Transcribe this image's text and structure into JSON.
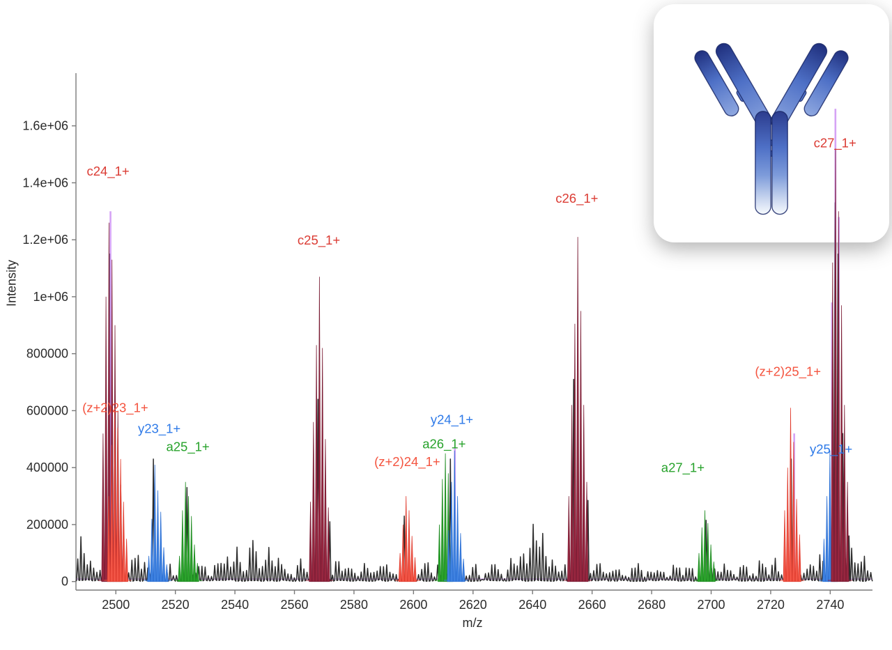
{
  "figure": {
    "background": "#ffffff",
    "axis_color": "#7a7a7a",
    "tick_label_color": "#2b2b2b",
    "noise_color": "#2c2c2c",
    "theoretical_color_rgba": "rgba(203,140,243,0.8)",
    "theoretical_baseline_rgba": "rgba(213,158,247,0.9)"
  },
  "overlay_card": {
    "name": "antibody-structure",
    "icon": "antibody-igg-icon",
    "fill_top": "#1f2f7d",
    "fill_mid": "#4e70c6",
    "fill_light": "#8fa8e0",
    "fill_bottom": "#f5f8fd",
    "outline": "#1b2968"
  },
  "chart_data": {
    "type": "line",
    "title": "",
    "xlabel": "m/z",
    "ylabel": "Intensity",
    "xlim": [
      2486.6,
      2754.2
    ],
    "ylim": [
      -30000,
      1785000
    ],
    "grid": false,
    "x_ticks": [
      2500,
      2520,
      2540,
      2560,
      2580,
      2600,
      2620,
      2640,
      2660,
      2680,
      2700,
      2720,
      2740
    ],
    "y_ticks": [
      {
        "label": "0",
        "value": 0
      },
      {
        "label": "200000",
        "value": 200000
      },
      {
        "label": "400000",
        "value": 400000
      },
      {
        "label": "600000",
        "value": 600000
      },
      {
        "label": "800000",
        "value": 800000
      },
      {
        "label": "1e+06",
        "value": 1000000
      },
      {
        "label": "1.2e+06",
        "value": 1200000
      },
      {
        "label": "1.4e+06",
        "value": 1400000
      },
      {
        "label": "1.6e+06",
        "value": 1600000
      }
    ],
    "ion_colors": {
      "c": {
        "fill": "#97263f",
        "edge": "#7a1c34",
        "label": "#db3b33"
      },
      "z2": {
        "fill": "#f25546",
        "edge": "#e03c2e",
        "label": "#f4543f"
      },
      "y": {
        "fill": "#3f82e0",
        "edge": "#2b6fd4",
        "label": "#2e7ae8"
      },
      "a": {
        "fill": "#2ba32c",
        "edge": "#1f8c22",
        "label": "#27a22b"
      }
    },
    "annotated_ions": [
      {
        "label": "c24_1+",
        "series": "c",
        "label_at": [
          2497.4,
          1425000
        ],
        "peaks": [
          [
            2495.7,
            520000
          ],
          [
            2496.7,
            1000000
          ],
          [
            2497.7,
            1260000
          ],
          [
            2498.7,
            1130000
          ],
          [
            2499.7,
            900000
          ],
          [
            2500.7,
            600000
          ],
          [
            2501.7,
            340000
          ]
        ]
      },
      {
        "label": "(z+2)23_1+",
        "series": "z2",
        "label_at": [
          2499.8,
          595000
        ],
        "peaks": [
          [
            2497.6,
            300000
          ],
          [
            2498.6,
            480000
          ],
          [
            2499.6,
            600000
          ],
          [
            2500.6,
            540000
          ],
          [
            2501.6,
            430000
          ],
          [
            2502.6,
            280000
          ],
          [
            2503.6,
            150000
          ]
        ]
      },
      {
        "label": "y23_1+",
        "series": "y",
        "label_at": [
          2514.6,
          522000
        ],
        "peaks": [
          [
            2511.1,
            90000
          ],
          [
            2512.1,
            220000
          ],
          [
            2513.1,
            410000
          ],
          [
            2514.1,
            320000
          ],
          [
            2515.1,
            245000
          ],
          [
            2516.1,
            120000
          ],
          [
            2517.1,
            60000
          ]
        ]
      },
      {
        "label": "a25_1+",
        "series": "a",
        "label_at": [
          2524.2,
          458000
        ],
        "peaks": [
          [
            2521.4,
            90000
          ],
          [
            2522.4,
            250000
          ],
          [
            2523.4,
            350000
          ],
          [
            2524.4,
            300000
          ],
          [
            2525.4,
            230000
          ],
          [
            2526.4,
            130000
          ],
          [
            2527.4,
            65000
          ]
        ]
      },
      {
        "label": "c25_1+",
        "series": "c",
        "label_at": [
          2568.2,
          1183000
        ],
        "peaks": [
          [
            2565.4,
            280000
          ],
          [
            2566.4,
            560000
          ],
          [
            2567.4,
            830000
          ],
          [
            2568.4,
            1070000
          ],
          [
            2569.4,
            820000
          ],
          [
            2570.4,
            500000
          ],
          [
            2571.4,
            260000
          ]
        ]
      },
      {
        "label": "(z+2)24_1+",
        "series": "z2",
        "label_at": [
          2597.9,
          405000
        ],
        "peaks": [
          [
            2595.5,
            100000
          ],
          [
            2596.5,
            200000
          ],
          [
            2597.5,
            300000
          ],
          [
            2598.5,
            250000
          ],
          [
            2599.5,
            160000
          ],
          [
            2600.5,
            85000
          ]
        ]
      },
      {
        "label": "a26_1+",
        "series": "a",
        "label_at": [
          2610.3,
          468000
        ],
        "peaks": [
          [
            2608.7,
            200000
          ],
          [
            2609.7,
            360000
          ],
          [
            2610.7,
            450000
          ],
          [
            2611.7,
            380000
          ],
          [
            2612.7,
            250000
          ]
        ]
      },
      {
        "label": "y24_1+",
        "series": "y",
        "label_at": [
          2612.9,
          553000
        ],
        "peaks": [
          [
            2611.8,
            180000
          ],
          [
            2612.8,
            350000
          ],
          [
            2613.8,
            460000
          ],
          [
            2614.8,
            300000
          ],
          [
            2615.8,
            170000
          ],
          [
            2616.8,
            80000
          ]
        ]
      },
      {
        "label": "c26_1+",
        "series": "c",
        "label_at": [
          2654.9,
          1330000
        ],
        "peaks": [
          [
            2652.2,
            300000
          ],
          [
            2653.2,
            620000
          ],
          [
            2654.2,
            905000
          ],
          [
            2655.2,
            1210000
          ],
          [
            2656.2,
            950000
          ],
          [
            2657.2,
            620000
          ],
          [
            2658.2,
            350000
          ]
        ]
      },
      {
        "label": "a27_1+",
        "series": "a",
        "label_at": [
          2690.5,
          385000
        ],
        "peaks": [
          [
            2695.9,
            100000
          ],
          [
            2696.9,
            190000
          ],
          [
            2697.9,
            250000
          ],
          [
            2698.9,
            205000
          ],
          [
            2699.9,
            130000
          ],
          [
            2700.9,
            70000
          ]
        ]
      },
      {
        "label": "(z+2)25_1+",
        "series": "z2",
        "label_at": [
          2725.8,
          722000
        ],
        "peaks": [
          [
            2724.7,
            250000
          ],
          [
            2725.7,
            400000
          ],
          [
            2726.7,
            610000
          ],
          [
            2727.7,
            490000
          ],
          [
            2728.7,
            290000
          ],
          [
            2729.7,
            165000
          ]
        ]
      },
      {
        "label": "y25_1+",
        "series": "y",
        "label_at": [
          2740.3,
          450000
        ],
        "peaks": [
          [
            2737.9,
            150000
          ],
          [
            2738.9,
            300000
          ],
          [
            2739.9,
            460000
          ],
          [
            2740.9,
            380000
          ],
          [
            2741.9,
            250000
          ]
        ]
      },
      {
        "label": "c27_1+",
        "series": "c",
        "label_at": [
          2741.6,
          1525000
        ],
        "peaks": [
          [
            2740.8,
            1120000
          ],
          [
            2741.8,
            1520000
          ],
          [
            2742.8,
            1300000
          ],
          [
            2743.8,
            970000
          ],
          [
            2744.8,
            620000
          ],
          [
            2745.8,
            350000
          ]
        ]
      }
    ],
    "theoretical_peaks": [
      [
        2498.2,
        1300000
      ],
      [
        2613.9,
        470000
      ],
      [
        2727.9,
        520000
      ],
      [
        2740.6,
        980000
      ],
      [
        2741.75,
        1660000
      ],
      [
        2742.9,
        1280000
      ]
    ],
    "theoretical_baseline_intensity": 9000,
    "noise": {
      "seed": 11,
      "base": 26000,
      "step": 1.07,
      "bumps": [
        [
          2488.5,
          1.6,
          150000
        ],
        [
          2492,
          1.4,
          70000
        ],
        [
          2495,
          1.0,
          40000
        ],
        [
          2506.5,
          1.6,
          105000
        ],
        [
          2510,
          1.3,
          60000
        ],
        [
          2518,
          1.4,
          50000
        ],
        [
          2529,
          1.6,
          55000
        ],
        [
          2534,
          1.4,
          70000
        ],
        [
          2537.5,
          1.6,
          110000
        ],
        [
          2541,
          1.4,
          95000
        ],
        [
          2546,
          1.8,
          160000
        ],
        [
          2551,
          1.5,
          130000
        ],
        [
          2555,
          1.5,
          95000
        ],
        [
          2562,
          1.3,
          65000
        ],
        [
          2574.5,
          1.6,
          60000
        ],
        [
          2578.5,
          1.3,
          55000
        ],
        [
          2584,
          1.5,
          45000
        ],
        [
          2590,
          1.8,
          55000
        ],
        [
          2604,
          1.5,
          75000
        ],
        [
          2608,
          1.0,
          40000
        ],
        [
          2620,
          1.8,
          45000
        ],
        [
          2627,
          1.8,
          50000
        ],
        [
          2633.5,
          1.4,
          95000
        ],
        [
          2636.5,
          1.3,
          110000
        ],
        [
          2640,
          1.6,
          240000
        ],
        [
          2643.3,
          1.4,
          185000
        ],
        [
          2647,
          1.4,
          105000
        ],
        [
          2651,
          1.0,
          50000
        ],
        [
          2662,
          2.0,
          55000
        ],
        [
          2668,
          2.0,
          40000
        ],
        [
          2675,
          2.2,
          45000
        ],
        [
          2682,
          2.0,
          45000
        ],
        [
          2688,
          1.8,
          50000
        ],
        [
          2693,
          1.5,
          55000
        ],
        [
          2700,
          1.5,
          50000
        ],
        [
          2705,
          1.6,
          55000
        ],
        [
          2711,
          1.8,
          60000
        ],
        [
          2717,
          1.6,
          65000
        ],
        [
          2721.5,
          1.3,
          75000
        ],
        [
          2733,
          1.4,
          65000
        ],
        [
          2737,
          1.3,
          85000
        ],
        [
          2746.5,
          1.8,
          140000
        ],
        [
          2751,
          1.5,
          95000
        ]
      ],
      "extra_spikes": [
        [
          2497.9,
          1150000
        ],
        [
          2512.6,
          430000
        ],
        [
          2523.9,
          330000
        ],
        [
          2567.9,
          640000
        ],
        [
          2571.9,
          210000
        ],
        [
          2596.9,
          230000
        ],
        [
          2612.4,
          430000
        ],
        [
          2653.8,
          710000
        ],
        [
          2658.6,
          285000
        ],
        [
          2698.3,
          215000
        ],
        [
          2726.9,
          430000
        ],
        [
          2741.6,
          1330000
        ],
        [
          2742.6,
          1150000
        ],
        [
          2744.2,
          520000
        ],
        [
          2746.3,
          160000
        ]
      ]
    }
  }
}
